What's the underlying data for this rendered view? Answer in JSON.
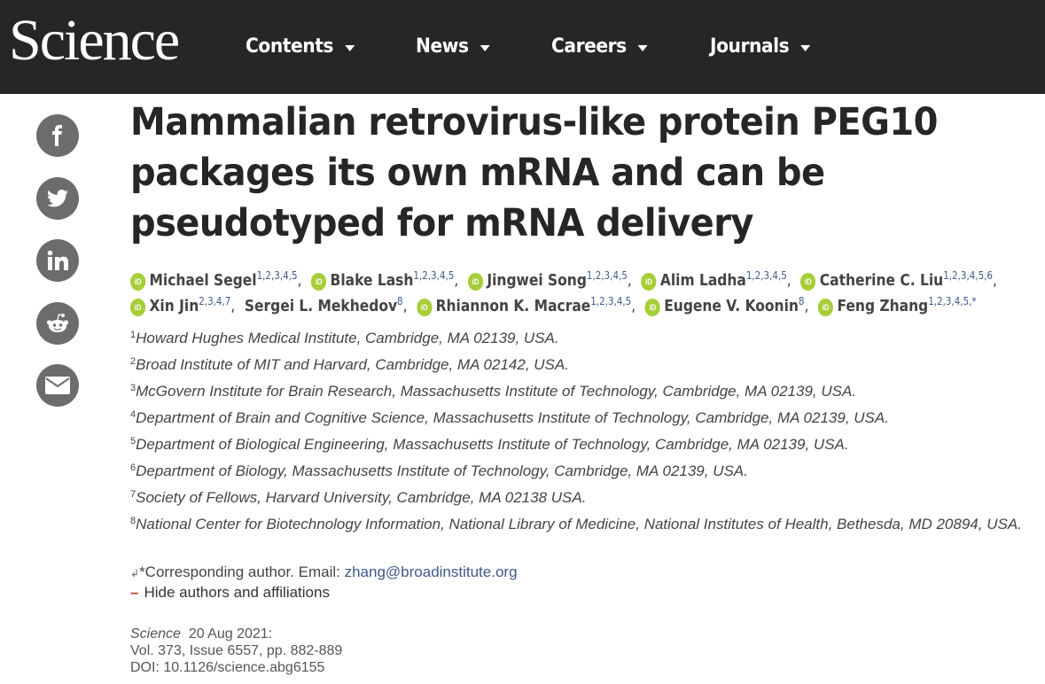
{
  "header": {
    "logo": "Science",
    "nav": [
      {
        "label": "Contents"
      },
      {
        "label": "News"
      },
      {
        "label": "Careers"
      },
      {
        "label": "Journals"
      }
    ]
  },
  "social": [
    "facebook-icon",
    "twitter-icon",
    "linkedin-icon",
    "reddit-icon",
    "email-icon"
  ],
  "article": {
    "title": "Mammalian retrovirus-like protein PEG10 packages its own mRNA and can be pseudotyped for mRNA delivery",
    "authors": [
      {
        "name": "Michael Segel",
        "sup": "1,2,3,4,5",
        "orcid": true
      },
      {
        "name": "Blake Lash",
        "sup": "1,2,3,4,5",
        "orcid": true
      },
      {
        "name": "Jingwei Song",
        "sup": "1,2,3,4,5",
        "orcid": true
      },
      {
        "name": "Alim Ladha",
        "sup": "1,2,3,4,5",
        "orcid": true
      },
      {
        "name": "Catherine C. Liu",
        "sup": "1,2,3,4,5,6",
        "orcid": true
      },
      {
        "name": "Xin Jin",
        "sup": "2,3,4,7",
        "orcid": true
      },
      {
        "name": "Sergei L. Mekhedov",
        "sup": "8",
        "orcid": false
      },
      {
        "name": "Rhiannon K. Macrae",
        "sup": "1,2,3,4,5",
        "orcid": true
      },
      {
        "name": "Eugene V. Koonin",
        "sup": "8",
        "orcid": true
      },
      {
        "name": "Feng Zhang",
        "sup": "1,2,3,4,5,*",
        "orcid": true
      }
    ],
    "orcid_label": "iD",
    "separator": ",",
    "affiliations": [
      {
        "num": "1",
        "text": "Howard Hughes Medical Institute, Cambridge, MA 02139, USA."
      },
      {
        "num": "2",
        "text": "Broad Institute of MIT and Harvard, Cambridge, MA 02142, USA."
      },
      {
        "num": "3",
        "text": "McGovern Institute for Brain Research, Massachusetts Institute of Technology, Cambridge, MA 02139, USA."
      },
      {
        "num": "4",
        "text": "Department of Brain and Cognitive Science, Massachusetts Institute of Technology, Cambridge, MA 02139, USA."
      },
      {
        "num": "5",
        "text": "Department of Biological Engineering, Massachusetts Institute of Technology, Cambridge, MA 02139, USA."
      },
      {
        "num": "6",
        "text": "Department of Biology, Massachusetts Institute of Technology, Cambridge, MA 02139, USA."
      },
      {
        "num": "7",
        "text": "Society of Fellows, Harvard University, Cambridge, MA 02138 USA."
      },
      {
        "num": "8",
        "text": "National Center for Biotechnology Information, National Library of Medicine, National Institutes of Health, Bethesda, MD 20894, USA."
      }
    ],
    "corresponding": {
      "arrow": "↲",
      "label": "*Corresponding author. Email: ",
      "email": "zhang@broadinstitute.org"
    },
    "toggle": {
      "dash": "–",
      "label": "Hide authors and affiliations"
    },
    "citation": {
      "journal": "Science",
      "date": "20 Aug 2021:",
      "volume": "Vol. 373, Issue 6557, pp. 882-889",
      "doi": "DOI: 10.1126/science.abg6155"
    }
  }
}
